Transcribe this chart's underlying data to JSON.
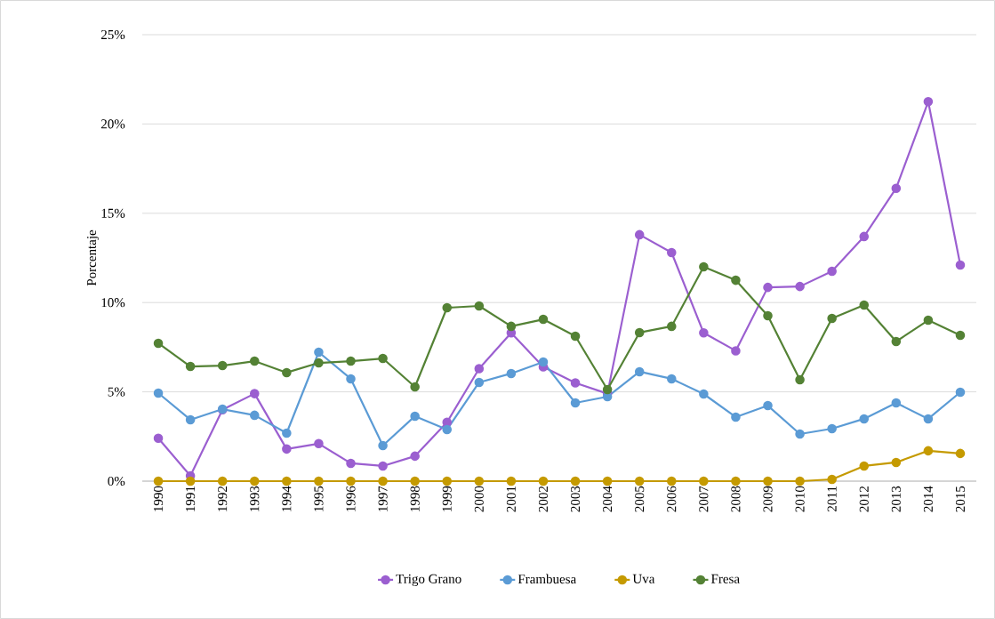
{
  "chart_data": {
    "type": "line",
    "ylabel": "Porcentaje",
    "categories": [
      "1990",
      "1991",
      "1992",
      "1993",
      "1994",
      "1995",
      "1996",
      "1997",
      "1998",
      "1999",
      "2000",
      "2001",
      "2002",
      "2003",
      "2004",
      "2005",
      "2006",
      "2007",
      "2008",
      "2009",
      "2010",
      "2011",
      "2012",
      "2013",
      "2014",
      "2015"
    ],
    "series": [
      {
        "name": "Trigo Grano",
        "color": "#9b5fd0",
        "values": [
          2.4,
          0.3,
          4.0,
          4.9,
          1.8,
          2.1,
          1.0,
          0.85,
          1.4,
          3.3,
          6.3,
          8.3,
          6.4,
          5.5,
          4.9,
          13.8,
          12.8,
          8.3,
          7.3,
          10.85,
          10.9,
          11.75,
          13.7,
          16.4,
          21.25,
          12.1
        ]
      },
      {
        "name": "Frambuesa",
        "color": "#5b9bd5",
        "values": [
          4.93,
          3.44,
          4.03,
          3.69,
          2.69,
          7.22,
          5.73,
          1.99,
          3.64,
          2.89,
          5.53,
          6.03,
          6.67,
          4.38,
          4.73,
          6.13,
          5.73,
          4.88,
          3.59,
          4.23,
          2.64,
          2.94,
          3.49,
          4.38,
          3.49,
          4.98
        ]
      },
      {
        "name": "Uva",
        "color": "#c59a00",
        "values": [
          0,
          0,
          0,
          0,
          0,
          0,
          0,
          0,
          0,
          0,
          0,
          0,
          0,
          0,
          0,
          0,
          0,
          0,
          0,
          0,
          0,
          0.1,
          0.85,
          1.05,
          1.7,
          1.55
        ]
      },
      {
        "name": "Fresa",
        "color": "#548235",
        "values": [
          7.72,
          6.42,
          6.47,
          6.72,
          6.08,
          6.62,
          6.72,
          6.87,
          5.28,
          9.71,
          9.81,
          8.67,
          9.06,
          8.12,
          5.13,
          8.32,
          8.67,
          12.0,
          11.25,
          9.26,
          5.68,
          9.11,
          9.86,
          7.82,
          9.01,
          8.17
        ]
      }
    ],
    "ylim": [
      0,
      25
    ],
    "yticks": [
      {
        "value": 0,
        "label": "0%"
      },
      {
        "value": 5,
        "label": "5%"
      },
      {
        "value": 10,
        "label": "10%"
      },
      {
        "value": 15,
        "label": "15%"
      },
      {
        "value": 20,
        "label": "20%"
      },
      {
        "value": 25,
        "label": "25%"
      }
    ],
    "grid": "y",
    "legend": "bottom",
    "marker": "circle",
    "line_style": "solid"
  }
}
